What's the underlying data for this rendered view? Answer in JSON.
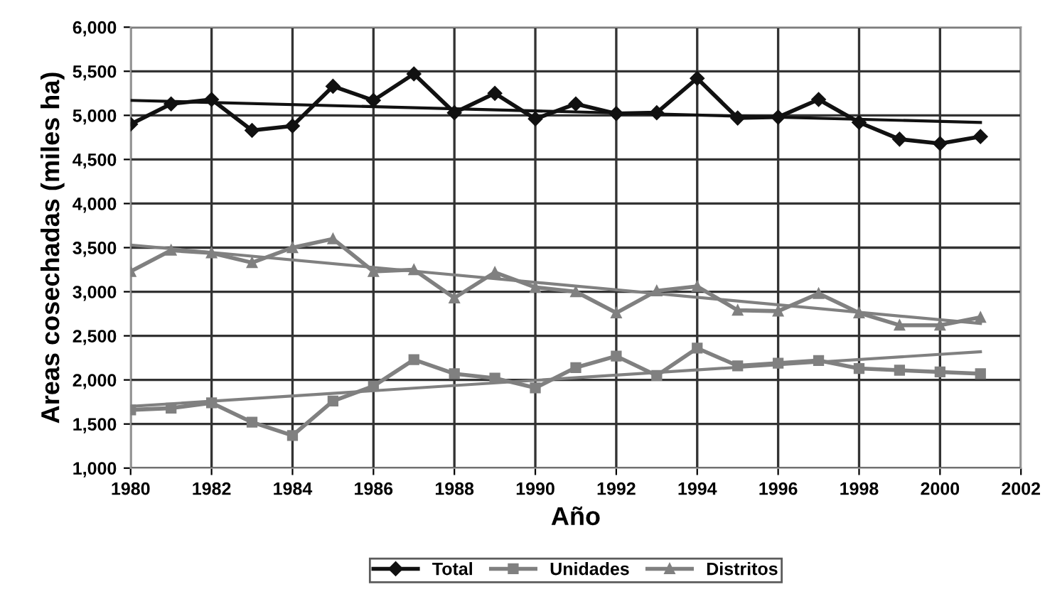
{
  "chart_data": {
    "type": "line",
    "xlabel": "Año",
    "ylabel": "Areas cosechadas (miles ha)",
    "x": [
      1980,
      1981,
      1982,
      1983,
      1984,
      1985,
      1986,
      1987,
      1988,
      1989,
      1990,
      1991,
      1992,
      1993,
      1994,
      1995,
      1996,
      1997,
      1998,
      1999,
      2000,
      2001
    ],
    "xlim": [
      1980,
      2002
    ],
    "xticks": [
      1980,
      1982,
      1984,
      1986,
      1988,
      1990,
      1992,
      1994,
      1996,
      1998,
      2000,
      2002
    ],
    "ylim": [
      1000,
      6000
    ],
    "yticks": [
      {
        "value": 1000,
        "label": "1,000"
      },
      {
        "value": 1500,
        "label": "1,500"
      },
      {
        "value": 2000,
        "label": "2,000"
      },
      {
        "value": 2500,
        "label": "2,500"
      },
      {
        "value": 3000,
        "label": "3,000"
      },
      {
        "value": 3500,
        "label": "3,500"
      },
      {
        "value": 4000,
        "label": "4,000"
      },
      {
        "value": 4500,
        "label": "4,500"
      },
      {
        "value": 5000,
        "label": "5,000"
      },
      {
        "value": 5500,
        "label": "5,500"
      },
      {
        "value": 6000,
        "label": "6,000"
      }
    ],
    "grid": true,
    "legend": "bottom",
    "line_style": "solid",
    "series": [
      {
        "name": "Total",
        "color": "#111111",
        "marker": "diamond",
        "values": [
          4900,
          5130,
          5180,
          4830,
          4880,
          5330,
          5170,
          5470,
          5030,
          5250,
          4960,
          5130,
          5020,
          5030,
          5420,
          4970,
          4980,
          5180,
          4920,
          4730,
          4680,
          4760
        ]
      },
      {
        "name": "Unidades",
        "color": "#808080",
        "marker": "square",
        "values": [
          1660,
          1680,
          1740,
          1520,
          1370,
          1760,
          1930,
          2230,
          2070,
          2020,
          1910,
          2140,
          2270,
          2050,
          2360,
          2160,
          2190,
          2220,
          2130,
          2110,
          2090,
          2070
        ]
      },
      {
        "name": "Distritos",
        "color": "#808080",
        "marker": "triangle",
        "values": [
          3230,
          3470,
          3440,
          3330,
          3500,
          3600,
          3230,
          3250,
          2930,
          3220,
          3050,
          3000,
          2760,
          3010,
          3060,
          2790,
          2780,
          2980,
          2760,
          2620,
          2620,
          2710
        ]
      },
      {
        "type": "line",
        "color": "#111111",
        "marker": "none",
        "values": [
          5170,
          null,
          null,
          null,
          null,
          null,
          null,
          null,
          null,
          null,
          null,
          null,
          null,
          null,
          null,
          null,
          null,
          null,
          null,
          null,
          null,
          4920
        ]
      },
      {
        "type": "line",
        "color": "#808080",
        "marker": "none",
        "values": [
          1700,
          null,
          null,
          null,
          null,
          null,
          null,
          null,
          null,
          null,
          null,
          null,
          null,
          null,
          null,
          null,
          null,
          null,
          null,
          null,
          null,
          2320
        ]
      },
      {
        "type": "line",
        "color": "#808080",
        "marker": "none",
        "values": [
          3530,
          null,
          null,
          null,
          null,
          null,
          null,
          null,
          null,
          null,
          null,
          null,
          null,
          null,
          null,
          null,
          null,
          null,
          null,
          null,
          null,
          2640
        ]
      }
    ]
  }
}
